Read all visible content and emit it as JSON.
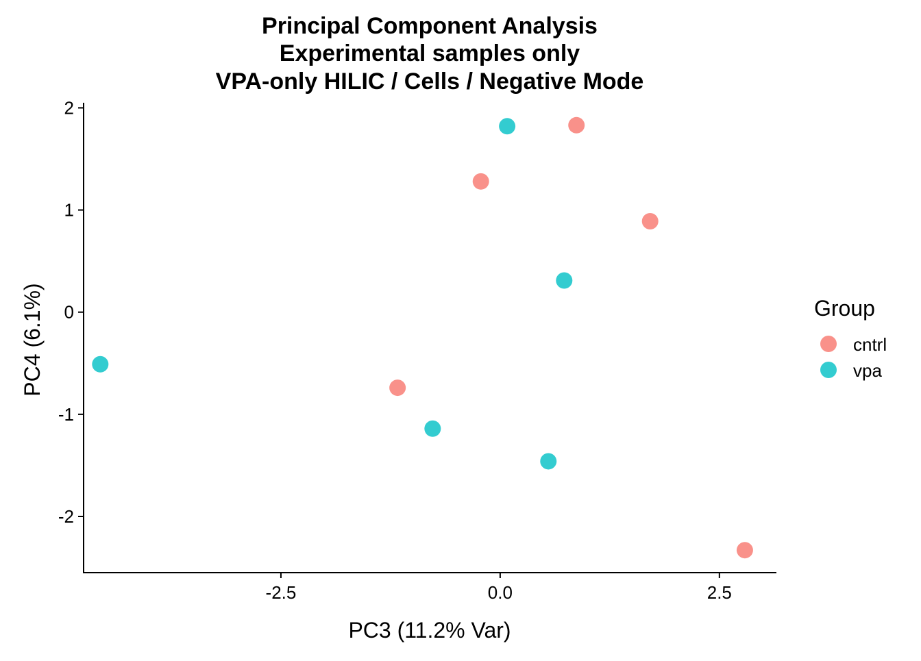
{
  "chart_data": {
    "type": "scatter",
    "title": [
      "Principal Component Analysis",
      "Experimental samples only",
      "VPA-only HILIC / Cells / Negative Mode"
    ],
    "xlabel": "PC3 (11.2% Var)",
    "ylabel": "PC4 (6.1%)",
    "xlim": [
      -4.75,
      3.15
    ],
    "ylim": [
      -2.55,
      2.05
    ],
    "x_ticks": [
      {
        "value": -2.5,
        "label": "-2.5"
      },
      {
        "value": 0.0,
        "label": "0.0"
      },
      {
        "value": 2.5,
        "label": "2.5"
      }
    ],
    "y_ticks": [
      {
        "value": -2,
        "label": "-2"
      },
      {
        "value": -1,
        "label": "-1"
      },
      {
        "value": 0,
        "label": "0"
      },
      {
        "value": 1,
        "label": "1"
      },
      {
        "value": 2,
        "label": "2"
      }
    ],
    "grid": false,
    "legend": {
      "title": "Group",
      "placement": "right"
    },
    "series": [
      {
        "name": "cntrl",
        "color": "#F8766D",
        "points": [
          {
            "x": 0.87,
            "y": 1.83
          },
          {
            "x": -0.22,
            "y": 1.28
          },
          {
            "x": 1.71,
            "y": 0.89
          },
          {
            "x": -1.17,
            "y": -0.74
          },
          {
            "x": 2.79,
            "y": -2.33
          }
        ]
      },
      {
        "name": "vpa",
        "color": "#00BFC4",
        "points": [
          {
            "x": 0.08,
            "y": 1.82
          },
          {
            "x": 0.73,
            "y": 0.31
          },
          {
            "x": -4.56,
            "y": -0.51
          },
          {
            "x": -0.77,
            "y": -1.14
          },
          {
            "x": 0.55,
            "y": -1.46
          }
        ]
      }
    ]
  }
}
